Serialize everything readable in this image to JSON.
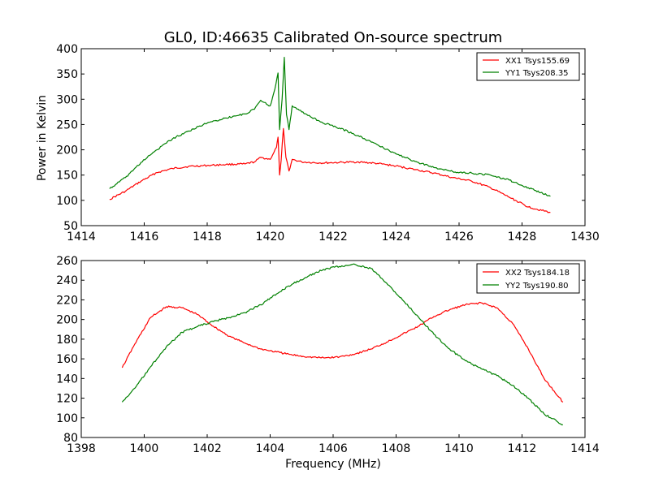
{
  "colors": {
    "xx": "#ff0000",
    "yy": "#008000"
  },
  "chart_data": [
    {
      "type": "line",
      "title": "GL0, ID:46635 Calibrated On-source spectrum",
      "xlabel": "",
      "ylabel": "Power in Kelvin",
      "xlim": [
        1414,
        1430
      ],
      "ylim": [
        50,
        400
      ],
      "xticks": [
        1414,
        1416,
        1418,
        1420,
        1422,
        1424,
        1426,
        1428,
        1430
      ],
      "yticks": [
        50,
        100,
        150,
        200,
        250,
        300,
        350,
        400
      ],
      "legend": "top-right",
      "series": [
        {
          "name": "XX1 Tsys155.69",
          "color": "#ff0000",
          "points": [
            [
              1414.9,
              102
            ],
            [
              1415.4,
              118
            ],
            [
              1415.9,
              138
            ],
            [
              1416.4,
              155
            ],
            [
              1416.9,
              163
            ],
            [
              1417.4,
              167
            ],
            [
              1418.0,
              169
            ],
            [
              1418.6,
              171
            ],
            [
              1419.2,
              172
            ],
            [
              1419.5,
              176
            ],
            [
              1419.7,
              185
            ],
            [
              1420.0,
              181
            ],
            [
              1420.2,
              205
            ],
            [
              1420.25,
              225
            ],
            [
              1420.3,
              150
            ],
            [
              1420.35,
              180
            ],
            [
              1420.42,
              242
            ],
            [
              1420.5,
              185
            ],
            [
              1420.6,
              158
            ],
            [
              1420.7,
              181
            ],
            [
              1421.0,
              176
            ],
            [
              1421.6,
              174
            ],
            [
              1422.2,
              175
            ],
            [
              1422.8,
              176
            ],
            [
              1423.4,
              173
            ],
            [
              1424.0,
              168
            ],
            [
              1424.6,
              161
            ],
            [
              1425.2,
              154
            ],
            [
              1425.8,
              145
            ],
            [
              1426.4,
              138
            ],
            [
              1427.0,
              125
            ],
            [
              1427.6,
              106
            ],
            [
              1428.2,
              87
            ],
            [
              1428.9,
              76
            ]
          ]
        },
        {
          "name": "YY1 Tsys208.35",
          "color": "#008000",
          "points": [
            [
              1414.9,
              123
            ],
            [
              1415.4,
              145
            ],
            [
              1415.9,
              175
            ],
            [
              1416.4,
              200
            ],
            [
              1416.9,
              222
            ],
            [
              1417.4,
              237
            ],
            [
              1418.0,
              253
            ],
            [
              1418.6,
              263
            ],
            [
              1419.2,
              271
            ],
            [
              1419.5,
              280
            ],
            [
              1419.7,
              298
            ],
            [
              1420.0,
              287
            ],
            [
              1420.15,
              320
            ],
            [
              1420.25,
              352
            ],
            [
              1420.3,
              240
            ],
            [
              1420.38,
              300
            ],
            [
              1420.45,
              383
            ],
            [
              1420.52,
              270
            ],
            [
              1420.6,
              240
            ],
            [
              1420.7,
              287
            ],
            [
              1421.0,
              275
            ],
            [
              1421.6,
              255
            ],
            [
              1422.2,
              243
            ],
            [
              1422.8,
              228
            ],
            [
              1423.4,
              210
            ],
            [
              1424.0,
              192
            ],
            [
              1424.6,
              177
            ],
            [
              1425.2,
              165
            ],
            [
              1425.8,
              157
            ],
            [
              1426.4,
              154
            ],
            [
              1427.0,
              150
            ],
            [
              1427.6,
              140
            ],
            [
              1428.2,
              125
            ],
            [
              1428.9,
              108
            ]
          ]
        }
      ]
    },
    {
      "type": "line",
      "title": "",
      "xlabel": "Frequency (MHz)",
      "ylabel": "",
      "xlim": [
        1398,
        1414
      ],
      "ylim": [
        80,
        260
      ],
      "xticks": [
        1398,
        1400,
        1402,
        1404,
        1406,
        1408,
        1410,
        1412,
        1414
      ],
      "yticks": [
        80,
        100,
        120,
        140,
        160,
        180,
        200,
        220,
        240,
        260
      ],
      "legend": "top-right",
      "series": [
        {
          "name": "XX2 Tsys184.18",
          "color": "#ff0000",
          "points": [
            [
              1399.3,
              151
            ],
            [
              1399.7,
              175
            ],
            [
              1400.2,
              202
            ],
            [
              1400.7,
              213
            ],
            [
              1401.2,
              212
            ],
            [
              1401.7,
              205
            ],
            [
              1402.2,
              193
            ],
            [
              1402.7,
              183
            ],
            [
              1403.2,
              176
            ],
            [
              1403.7,
              170
            ],
            [
              1404.2,
              167
            ],
            [
              1404.7,
              164
            ],
            [
              1405.2,
              162
            ],
            [
              1405.7,
              161
            ],
            [
              1406.2,
              162
            ],
            [
              1406.7,
              165
            ],
            [
              1407.2,
              170
            ],
            [
              1407.7,
              177
            ],
            [
              1408.2,
              185
            ],
            [
              1408.7,
              193
            ],
            [
              1409.2,
              203
            ],
            [
              1409.7,
              210
            ],
            [
              1410.2,
              215
            ],
            [
              1410.7,
              217
            ],
            [
              1411.2,
              212
            ],
            [
              1411.7,
              196
            ],
            [
              1412.2,
              170
            ],
            [
              1412.7,
              140
            ],
            [
              1413.3,
              116
            ]
          ]
        },
        {
          "name": "YY2 Tsys190.80",
          "color": "#008000",
          "points": [
            [
              1399.3,
              116
            ],
            [
              1399.7,
              130
            ],
            [
              1400.2,
              152
            ],
            [
              1400.7,
              172
            ],
            [
              1401.2,
              187
            ],
            [
              1401.7,
              193
            ],
            [
              1402.2,
              198
            ],
            [
              1402.7,
              202
            ],
            [
              1403.2,
              207
            ],
            [
              1403.7,
              215
            ],
            [
              1404.2,
              226
            ],
            [
              1404.7,
              236
            ],
            [
              1405.2,
              244
            ],
            [
              1405.7,
              251
            ],
            [
              1406.2,
              254
            ],
            [
              1406.7,
              256
            ],
            [
              1407.2,
              252
            ],
            [
              1407.7,
              237
            ],
            [
              1408.2,
              220
            ],
            [
              1408.7,
              203
            ],
            [
              1409.2,
              185
            ],
            [
              1409.7,
              170
            ],
            [
              1410.2,
              158
            ],
            [
              1410.7,
              150
            ],
            [
              1411.2,
              143
            ],
            [
              1411.7,
              133
            ],
            [
              1412.2,
              120
            ],
            [
              1412.7,
              104
            ],
            [
              1413.3,
              93
            ]
          ]
        }
      ]
    }
  ]
}
